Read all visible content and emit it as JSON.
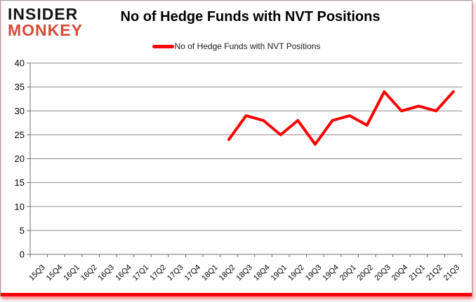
{
  "brand": {
    "line1": "INSIDER",
    "line2": "MONKEY"
  },
  "header": {
    "title": "No of Hedge Funds with NVT Positions"
  },
  "legend": {
    "label": "No of Hedge Funds with NVT Positions"
  },
  "colors": {
    "line": "#ff0000",
    "logo_black": "#141414",
    "logo_red": "#d44b38",
    "gridline": "#8c8c8c",
    "axis": "#6e6e6e",
    "accent_bar": "#fa0205",
    "axis_text": "#000000"
  },
  "chart_data": {
    "type": "line",
    "title": "No of Hedge Funds with NVT Positions",
    "xlabel": "",
    "ylabel": "",
    "ylim": [
      0,
      40
    ],
    "ytick_step": 5,
    "grid": true,
    "legend_position": "top",
    "categories": [
      "15Q3",
      "15Q4",
      "16Q1",
      "16Q2",
      "16Q3",
      "16Q4",
      "17Q1",
      "17Q2",
      "17Q3",
      "17Q4",
      "18Q1",
      "18Q2",
      "18Q3",
      "18Q4",
      "19Q1",
      "19Q2",
      "19Q3",
      "19Q4",
      "20Q1",
      "20Q2",
      "20Q3",
      "20Q4",
      "21Q1",
      "21Q2",
      "21Q3"
    ],
    "series": [
      {
        "name": "No of Hedge Funds with NVT Positions",
        "color": "#ff0000",
        "values": [
          null,
          null,
          null,
          null,
          null,
          null,
          null,
          null,
          null,
          null,
          null,
          24,
          29,
          28,
          25,
          28,
          23,
          28,
          29,
          27,
          34,
          30,
          31,
          30,
          34
        ]
      }
    ]
  }
}
